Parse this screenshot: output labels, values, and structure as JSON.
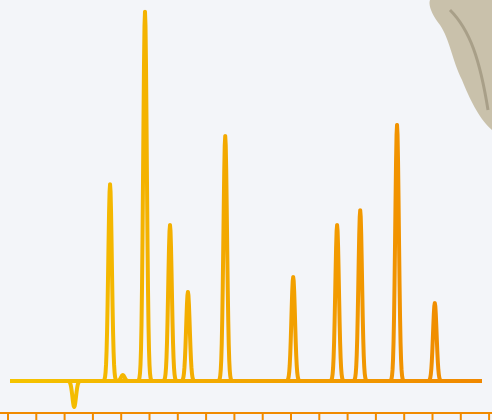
{
  "chart_data": {
    "type": "chromatogram",
    "x": [
      13.6,
      21.2,
      23.9,
      28.6,
      33.9,
      37.7,
      45.6,
      60,
      69.3,
      74.2,
      82,
      90
    ],
    "values": [
      -7,
      53,
      1.6,
      99.5,
      42,
      24,
      66,
      28,
      42,
      46,
      69,
      21
    ],
    "xlim": [
      0,
      100
    ],
    "ylim": [
      0,
      100
    ],
    "colors": [
      "#f5c400",
      "#f08800"
    ]
  }
}
